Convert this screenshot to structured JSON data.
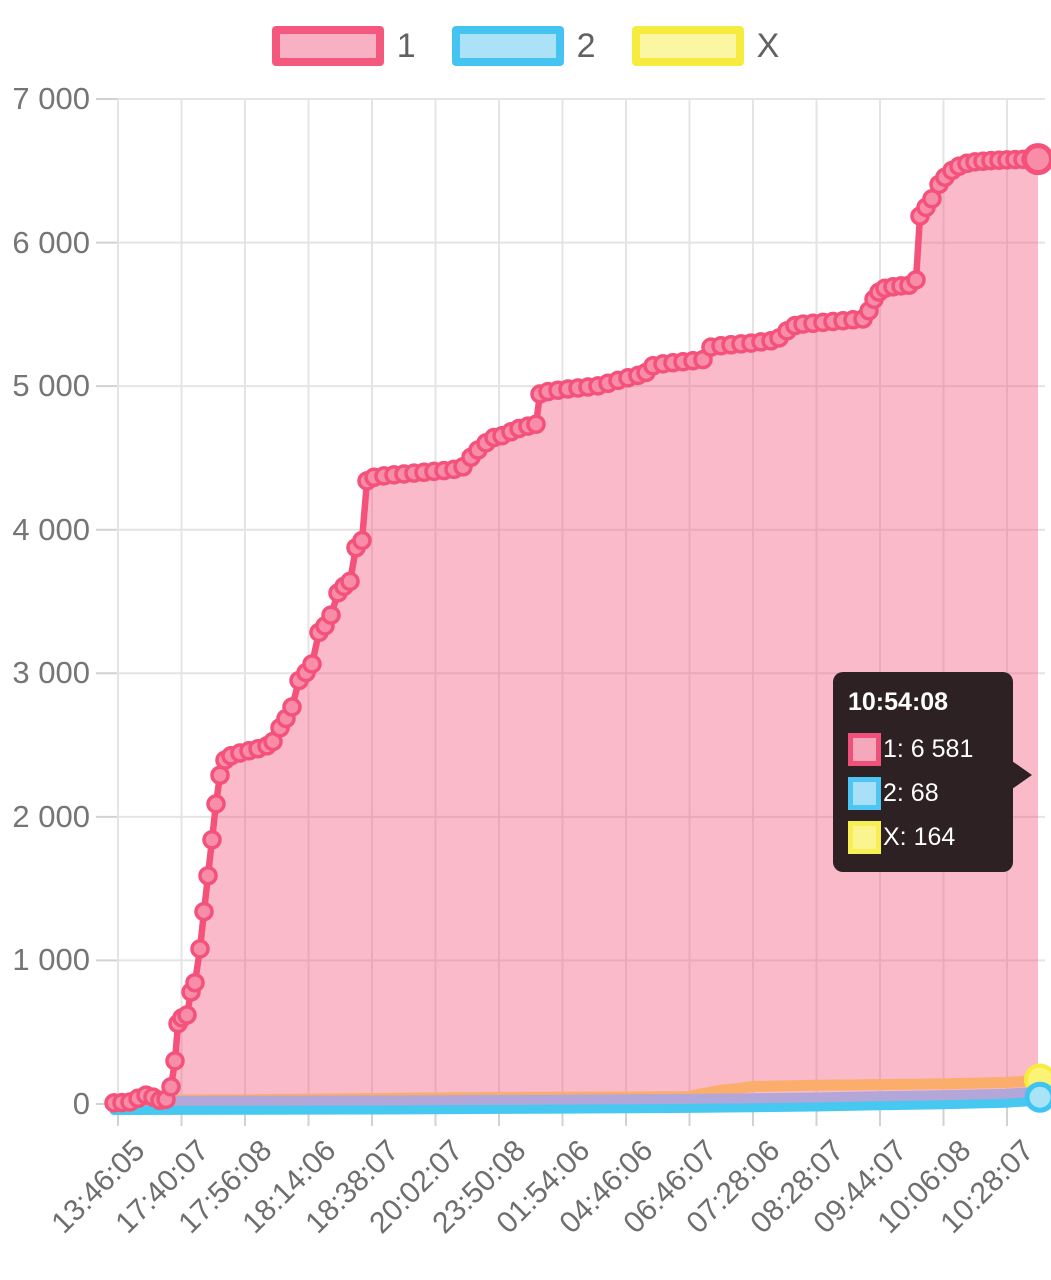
{
  "legend": {
    "items": [
      {
        "label": "1",
        "fill": "#F8B0C3",
        "border": "#F4587E"
      },
      {
        "label": "2",
        "fill": "#ABE2F8",
        "border": "#45C4F2"
      },
      {
        "label": "X",
        "fill": "#FBF6A1",
        "border": "#F7EB3F"
      }
    ]
  },
  "tooltip": {
    "title": "10:54:08",
    "rows": [
      {
        "label": "1: 6 581",
        "fill": "#F5A7BC",
        "border": "#F0517A"
      },
      {
        "label": "2: 68",
        "fill": "#A8E0F8",
        "border": "#4EC6F5"
      },
      {
        "label": "X: 164",
        "fill": "#FBF48F",
        "border": "#F8EF53"
      }
    ]
  },
  "chart_data": {
    "type": "area",
    "title": "",
    "xlabel": "",
    "ylabel": "",
    "ylim": [
      0,
      7000
    ],
    "grid": true,
    "legend_position": "top",
    "y_tick_labels": [
      "7 000",
      "6 000",
      "5 000",
      "4 000",
      "3 000",
      "2 000",
      "1 000",
      "0"
    ],
    "x_tick_labels": [
      "13:46:05",
      "17:40:07",
      "17:56:08",
      "18:14:06",
      "18:38:07",
      "20:02:07",
      "23:50:08",
      "01:54:06",
      "04:46:06",
      "06:46:07",
      "07:28:06",
      "08:28:07",
      "09:44:07",
      "10:06:08",
      "10:28:07"
    ],
    "hover_time": "10:54:08",
    "final_values": {
      "1": 6581,
      "2": 68,
      "X": 164
    },
    "series": [
      {
        "name": "1",
        "line_color": "#F4517B",
        "marker_fill": "#F78DA8",
        "area_fill": "rgba(244,90,128,0.42)",
        "points": [
          [
            -4,
            8
          ],
          [
            4,
            10
          ],
          [
            12,
            14
          ],
          [
            20,
            40
          ],
          [
            28,
            62
          ],
          [
            35,
            48
          ],
          [
            42,
            26
          ],
          [
            48,
            32
          ],
          [
            53,
            120
          ],
          [
            57,
            300
          ],
          [
            60,
            560
          ],
          [
            64,
            600
          ],
          [
            69,
            620
          ],
          [
            73,
            780
          ],
          [
            77,
            845
          ],
          [
            82,
            1080
          ],
          [
            86,
            1340
          ],
          [
            90,
            1590
          ],
          [
            94,
            1840
          ],
          [
            98,
            2090
          ],
          [
            102,
            2290
          ],
          [
            107,
            2395
          ],
          [
            113,
            2425
          ],
          [
            122,
            2445
          ],
          [
            131,
            2460
          ],
          [
            140,
            2475
          ],
          [
            149,
            2495
          ],
          [
            155,
            2525
          ],
          [
            162,
            2620
          ],
          [
            168,
            2685
          ],
          [
            174,
            2765
          ],
          [
            181,
            2950
          ],
          [
            188,
            3005
          ],
          [
            194,
            3065
          ],
          [
            201,
            3285
          ],
          [
            207,
            3330
          ],
          [
            213,
            3405
          ],
          [
            220,
            3560
          ],
          [
            226,
            3605
          ],
          [
            232,
            3640
          ],
          [
            238,
            3875
          ],
          [
            244,
            3925
          ],
          [
            249,
            4340
          ],
          [
            256,
            4365
          ],
          [
            266,
            4375
          ],
          [
            276,
            4382
          ],
          [
            286,
            4388
          ],
          [
            296,
            4394
          ],
          [
            306,
            4400
          ],
          [
            316,
            4406
          ],
          [
            326,
            4412
          ],
          [
            336,
            4420
          ],
          [
            345,
            4438
          ],
          [
            353,
            4505
          ],
          [
            360,
            4555
          ],
          [
            368,
            4605
          ],
          [
            376,
            4642
          ],
          [
            384,
            4655
          ],
          [
            393,
            4682
          ],
          [
            401,
            4705
          ],
          [
            410,
            4722
          ],
          [
            418,
            4735
          ],
          [
            422,
            4945
          ],
          [
            430,
            4962
          ],
          [
            440,
            4972
          ],
          [
            450,
            4980
          ],
          [
            460,
            4987
          ],
          [
            470,
            4994
          ],
          [
            480,
            5002
          ],
          [
            490,
            5020
          ],
          [
            500,
            5040
          ],
          [
            510,
            5058
          ],
          [
            520,
            5075
          ],
          [
            528,
            5095
          ],
          [
            535,
            5142
          ],
          [
            545,
            5155
          ],
          [
            555,
            5163
          ],
          [
            565,
            5170
          ],
          [
            575,
            5177
          ],
          [
            585,
            5185
          ],
          [
            593,
            5272
          ],
          [
            603,
            5282
          ],
          [
            613,
            5288
          ],
          [
            623,
            5294
          ],
          [
            633,
            5300
          ],
          [
            643,
            5308
          ],
          [
            653,
            5316
          ],
          [
            661,
            5335
          ],
          [
            669,
            5385
          ],
          [
            677,
            5422
          ],
          [
            685,
            5432
          ],
          [
            695,
            5438
          ],
          [
            705,
            5444
          ],
          [
            715,
            5450
          ],
          [
            725,
            5456
          ],
          [
            735,
            5462
          ],
          [
            745,
            5468
          ],
          [
            751,
            5525
          ],
          [
            756,
            5605
          ],
          [
            761,
            5655
          ],
          [
            767,
            5682
          ],
          [
            775,
            5692
          ],
          [
            783,
            5698
          ],
          [
            791,
            5703
          ],
          [
            798,
            5740
          ],
          [
            802,
            6185
          ],
          [
            808,
            6245
          ],
          [
            814,
            6305
          ],
          [
            821,
            6405
          ],
          [
            827,
            6455
          ],
          [
            834,
            6502
          ],
          [
            841,
            6532
          ],
          [
            849,
            6552
          ],
          [
            857,
            6562
          ],
          [
            865,
            6567
          ],
          [
            873,
            6571
          ],
          [
            881,
            6574
          ],
          [
            889,
            6576
          ],
          [
            897,
            6578
          ],
          [
            905,
            6579
          ],
          [
            913,
            6580
          ],
          [
            920,
            6581
          ]
        ]
      },
      {
        "name": "2",
        "line_color": "#47C8F1",
        "band_color": "#B2A7D8",
        "marker_fill": "#A8E4F5",
        "marker_border": "#3FC4F2",
        "points": [
          [
            -4,
            3
          ],
          [
            60,
            4
          ],
          [
            127,
            5
          ],
          [
            190,
            6
          ],
          [
            254,
            7
          ],
          [
            317,
            9
          ],
          [
            381,
            11
          ],
          [
            444,
            13
          ],
          [
            508,
            15
          ],
          [
            571,
            18
          ],
          [
            635,
            22
          ],
          [
            698,
            28
          ],
          [
            761,
            36
          ],
          [
            825,
            44
          ],
          [
            888,
            54
          ],
          [
            920,
            68
          ]
        ]
      },
      {
        "name": "X",
        "line_color": "#FBAE6B",
        "marker_fill": "#FCF376",
        "marker_border": "#F7EC3E",
        "points": [
          [
            -4,
            25
          ],
          [
            60,
            28
          ],
          [
            127,
            30
          ],
          [
            190,
            34
          ],
          [
            254,
            38
          ],
          [
            317,
            42
          ],
          [
            381,
            45
          ],
          [
            444,
            47
          ],
          [
            508,
            48
          ],
          [
            562,
            50
          ],
          [
            571,
            52
          ],
          [
            582,
            70
          ],
          [
            602,
            95
          ],
          [
            622,
            110
          ],
          [
            635,
            122
          ],
          [
            698,
            130
          ],
          [
            761,
            135
          ],
          [
            825,
            140
          ],
          [
            888,
            150
          ],
          [
            920,
            164
          ]
        ]
      }
    ]
  }
}
